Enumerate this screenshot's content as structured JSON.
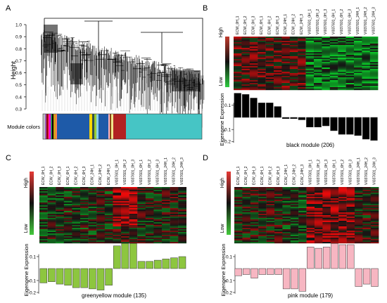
{
  "panels": {
    "A": {
      "letter": "A",
      "ylabel": "Height",
      "yticks": [
        "1.0",
        "0.9",
        "0.8",
        "0.7",
        "0.6",
        "0.5",
        "0.4",
        "0.3"
      ],
      "module_colors_label": "Module colors",
      "color_strip": [
        "#c0c0c0",
        "#9b59b6",
        "#8b0000",
        "#e91e63",
        "#ff00ff",
        "#2e8b57",
        "#000000",
        "#d4a017",
        "#ff7f50",
        "#1e5aa8",
        "#1e5aa8",
        "#1e5aa8",
        "#ffd700",
        "#2f4f4f",
        "#9acd32",
        "#87ceeb",
        "#1e5aa8",
        "#ffb6c1",
        "#8b4513",
        "#f0e68c",
        "#b22222",
        "#46c5c5"
      ]
    },
    "B": {
      "letter": "B",
      "module_title": "black module (206)",
      "bar_color": "#000000"
    },
    "C": {
      "letter": "C",
      "module_title": "greenyellow module (135)",
      "bar_color": "#8dc63f"
    },
    "D": {
      "letter": "D",
      "module_title": "pink module (179)",
      "bar_color": "#f7b6c2"
    }
  },
  "shared": {
    "samples": [
      "ECW_0H_1",
      "ECW_0H_2",
      "ECW_0H_3",
      "ECW_6H_1",
      "ECW_6H_2",
      "ECW_6H_3",
      "ECW_24H_1",
      "ECW_24H_2",
      "ECW_24H_3",
      "VI037601_0H_1",
      "VI037601_0H_2",
      "VI037601_0H_3",
      "VI037601_6H_1",
      "VI037601_6H_2",
      "VI037601_6H_3",
      "VI037601_24H_1",
      "VI037601_24H_2",
      "VI037601_24H_3"
    ],
    "high_label": "High",
    "low_label": "Low",
    "eig_ylabel": "Eigengene Expression",
    "eig_yticks": [
      "0.1",
      "-0.1",
      "-0.2"
    ]
  },
  "chart_data": [
    {
      "type": "bar",
      "panel": "B",
      "title": "black module (206)",
      "ylabel": "Eigengene Expression",
      "categories": [
        "ECW_0H_1",
        "ECW_0H_2",
        "ECW_0H_3",
        "ECW_6H_1",
        "ECW_6H_2",
        "ECW_6H_3",
        "ECW_24H_1",
        "ECW_24H_2",
        "ECW_24H_3",
        "VI037601_0H_1",
        "VI037601_0H_2",
        "VI037601_0H_3",
        "VI037601_6H_1",
        "VI037601_6H_2",
        "VI037601_6H_3",
        "VI037601_24H_1",
        "VI037601_24H_2",
        "VI037601_24H_3"
      ],
      "values": [
        0.2,
        0.19,
        0.16,
        0.12,
        0.12,
        0.09,
        -0.01,
        -0.01,
        -0.02,
        -0.08,
        -0.08,
        -0.07,
        -0.11,
        -0.14,
        -0.14,
        -0.15,
        -0.18,
        -0.19
      ],
      "ylim": [
        -0.2,
        0.2
      ]
    },
    {
      "type": "bar",
      "panel": "C",
      "title": "greenyellow module (135)",
      "ylabel": "Eigengene Expression",
      "categories": [
        "ECW_0H_1",
        "ECW_0H_2",
        "ECW_0H_3",
        "ECW_6H_1",
        "ECW_6H_2",
        "ECW_6H_3",
        "ECW_24H_1",
        "ECW_24H_2",
        "ECW_24H_3",
        "VI037601_0H_1",
        "VI037601_0H_2",
        "VI037601_0H_3",
        "VI037601_6H_1",
        "VI037601_6H_2",
        "VI037601_6H_3",
        "VI037601_24H_1",
        "VI037601_24H_2",
        "VI037601_24H_3"
      ],
      "values": [
        -0.12,
        -0.11,
        -0.13,
        -0.14,
        -0.16,
        -0.16,
        -0.17,
        -0.18,
        -0.14,
        0.19,
        0.21,
        0.21,
        0.06,
        0.06,
        0.07,
        0.08,
        0.09,
        0.1
      ],
      "ylim": [
        -0.2,
        0.2
      ]
    },
    {
      "type": "bar",
      "panel": "D",
      "title": "pink module (179)",
      "ylabel": "Eigengene Expression",
      "categories": [
        "ECW_0H_1",
        "ECW_0H_2",
        "ECW_0H_3",
        "ECW_6H_1",
        "ECW_6H_2",
        "ECW_6H_3",
        "ECW_24H_1",
        "ECW_24H_2",
        "ECW_24H_3",
        "VI037601_0H_1",
        "VI037601_0H_2",
        "VI037601_0H_3",
        "VI037601_6H_1",
        "VI037601_6H_2",
        "VI037601_6H_3",
        "VI037601_24H_1",
        "VI037601_24H_2",
        "VI037601_24H_3"
      ],
      "values": [
        -0.06,
        -0.05,
        -0.08,
        -0.05,
        -0.05,
        -0.05,
        -0.17,
        -0.17,
        -0.19,
        0.18,
        0.17,
        0.18,
        0.21,
        0.2,
        0.2,
        -0.15,
        -0.13,
        -0.15
      ],
      "ylim": [
        -0.2,
        0.2
      ]
    }
  ]
}
